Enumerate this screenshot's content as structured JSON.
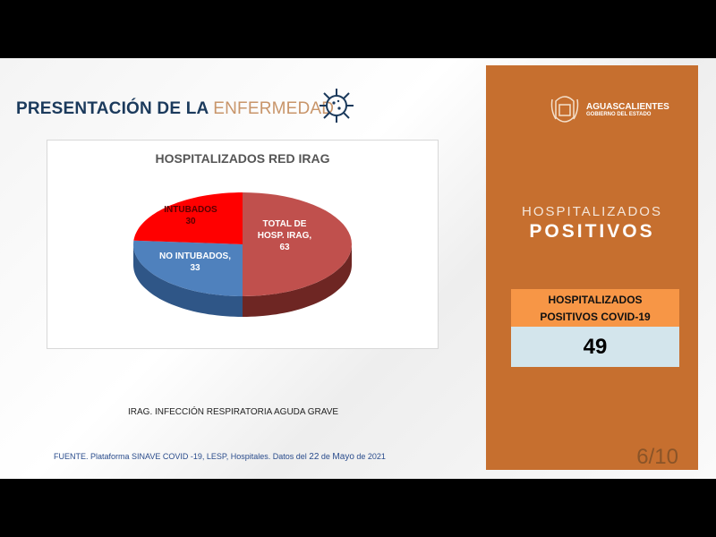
{
  "slide": {
    "title_bold": "PRESENTACIÓN DE LA ",
    "title_accent": "ENFERMEDAD",
    "note": "IRAG. INFECCIÓN RESPIRATORIA AGUDA GRAVE",
    "source_prefix": "FUENTE. Plataforma SINAVE COVID -19, LESP, Hospitales. Datos del ",
    "source_day": "22",
    "source_de": " de ",
    "source_month": "Mayo",
    "source_suffix": " de 2021"
  },
  "panel": {
    "logo_name": "AGUASCALIENTES",
    "logo_sub": "GOBIERNO DEL ESTADO",
    "heading1": "HOSPITALIZADOS",
    "heading2": "POSITIVOS",
    "box_label_line1": "HOSPITALIZADOS",
    "box_label_line2": "POSITIVOS COVID-19",
    "box_value": "49",
    "page": "6/10",
    "color": "#c66f2f"
  },
  "chart_data": {
    "type": "pie",
    "title": "HOSPITALIZADOS RED IRAG",
    "slices": [
      {
        "label": "TOTAL DE HOSP. IRAG",
        "value": 63,
        "color": "#c0504d",
        "side": "#6e2623",
        "l1": "TOTAL DE",
        "l2": "HOSP. IRAG,",
        "l3": "63"
      },
      {
        "label": "NO INTUBADOS",
        "value": 33,
        "color": "#4f81bd",
        "side": "#2f5687",
        "l1": "NO INTUBADOS,",
        "l2": "33"
      },
      {
        "label": "INTUBADOS",
        "value": 30,
        "color": "#ff0000",
        "side": "#a00000",
        "l1": "INTUBADOS",
        "l2": "30"
      }
    ]
  }
}
